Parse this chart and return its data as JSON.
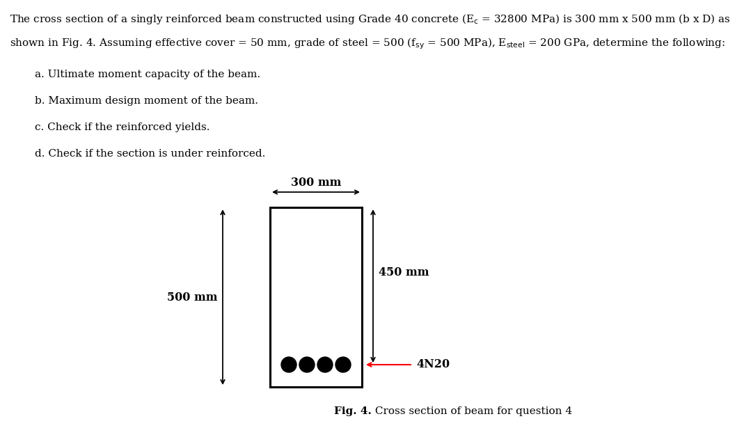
{
  "line1": "The cross section of a singly reinforced beam constructed using Grade 40 concrete (E$_\\mathrm{c}$ = 32800 MPa) is 300 mm x 500 mm (b x D) as",
  "line2": "shown in Fig. 4. Assuming effective cover = 50 mm, grade of steel = 500 (f$_\\mathrm{sy}$ = 500 MPa), E$_\\mathrm{steel}$ = 200 GPa, determine the following:",
  "items": [
    "a. Ultimate moment capacity of the beam.",
    "b. Maximum design moment of the beam.",
    "c. Check if the reinforced yields.",
    "d. Check if the section is under reinforced."
  ],
  "beam_width_label": "300 mm",
  "beam_height_label": "500 mm",
  "effective_depth_label": "450 mm",
  "rebar_label": "4N20",
  "fig_caption_bold": "Fig. 4.",
  "fig_caption_rest": " Cross section of beam for question 4",
  "background_color": "#ffffff",
  "text_color": "#000000",
  "beam_color": "#000000",
  "rebar_color": "#000000",
  "rebar_arrow_color": "#ff0000",
  "beam_lw": 2.2,
  "fontsize_text": 11.0,
  "fontsize_labels": 11.5,
  "fontsize_caption": 11.0
}
